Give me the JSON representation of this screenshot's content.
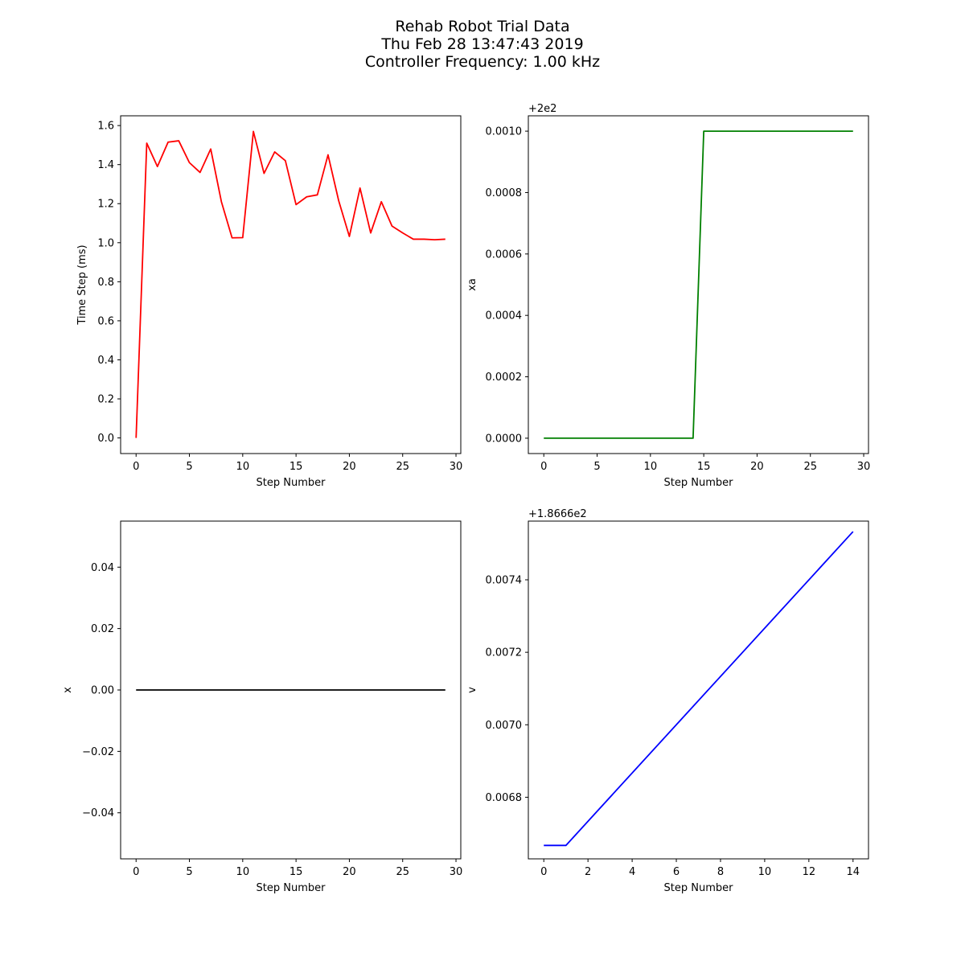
{
  "figure": {
    "title_lines": [
      "Rehab Robot Trial Data",
      "Thu Feb 28 13:47:43 2019",
      "Controller Frequency: 1.00 kHz"
    ]
  },
  "chart_data": [
    {
      "type": "line",
      "xlabel": "Step Number",
      "ylabel": "Time Step (ms)",
      "offset_text": "",
      "color": "#ff0000",
      "xlim": [
        -1.45,
        30.45
      ],
      "ylim": [
        -0.08,
        1.65
      ],
      "xticks": [
        0,
        5,
        10,
        15,
        20,
        25,
        30
      ],
      "xtick_labels": [
        "0",
        "5",
        "10",
        "15",
        "20",
        "25",
        "30"
      ],
      "yticks": [
        0.0,
        0.2,
        0.4,
        0.6,
        0.8,
        1.0,
        1.2,
        1.4,
        1.6
      ],
      "ytick_labels": [
        "0.0",
        "0.2",
        "0.4",
        "0.6",
        "0.8",
        "1.0",
        "1.2",
        "1.4",
        "1.6"
      ],
      "x": [
        0,
        1,
        2,
        3,
        4,
        5,
        6,
        7,
        8,
        9,
        10,
        11,
        12,
        13,
        14,
        15,
        16,
        17,
        18,
        19,
        20,
        21,
        22,
        23,
        24,
        25,
        26,
        27,
        28,
        29
      ],
      "y": [
        0.0,
        1.51,
        1.39,
        1.515,
        1.522,
        1.41,
        1.36,
        1.48,
        1.21,
        1.025,
        1.026,
        1.57,
        1.355,
        1.465,
        1.42,
        1.195,
        1.235,
        1.245,
        1.45,
        1.215,
        1.032,
        1.28,
        1.05,
        1.21,
        1.085,
        1.05,
        1.018,
        1.018,
        1.015,
        1.018
      ]
    },
    {
      "type": "line",
      "xlabel": "Step Number",
      "ylabel": "xa",
      "offset_text": "+2e2",
      "color": "#008000",
      "xlim": [
        -1.45,
        30.45
      ],
      "ylim": [
        -5e-05,
        0.00105
      ],
      "xticks": [
        0,
        5,
        10,
        15,
        20,
        25,
        30
      ],
      "xtick_labels": [
        "0",
        "5",
        "10",
        "15",
        "20",
        "25",
        "30"
      ],
      "yticks": [
        0.0,
        0.0002,
        0.0004,
        0.0006,
        0.0008,
        0.001
      ],
      "ytick_labels": [
        "0.0000",
        "0.0002",
        "0.0004",
        "0.0006",
        "0.0008",
        "0.0010"
      ],
      "x": [
        0,
        1,
        2,
        3,
        4,
        5,
        6,
        7,
        8,
        9,
        10,
        11,
        12,
        13,
        14,
        15,
        16,
        17,
        18,
        19,
        20,
        21,
        22,
        23,
        24,
        25,
        26,
        27,
        28,
        29
      ],
      "y": [
        0,
        0,
        0,
        0,
        0,
        0,
        0,
        0,
        0,
        0,
        0,
        0,
        0,
        0,
        0,
        0.001,
        0.001,
        0.001,
        0.001,
        0.001,
        0.001,
        0.001,
        0.001,
        0.001,
        0.001,
        0.001,
        0.001,
        0.001,
        0.001,
        0.001
      ]
    },
    {
      "type": "line",
      "xlabel": "Step Number",
      "ylabel": "x",
      "offset_text": "",
      "color": "#000000",
      "xlim": [
        -1.45,
        30.45
      ],
      "ylim": [
        -0.055,
        0.055
      ],
      "xticks": [
        0,
        5,
        10,
        15,
        20,
        25,
        30
      ],
      "xtick_labels": [
        "0",
        "5",
        "10",
        "15",
        "20",
        "25",
        "30"
      ],
      "yticks": [
        -0.04,
        -0.02,
        0.0,
        0.02,
        0.04
      ],
      "ytick_labels": [
        "−0.04",
        "−0.02",
        "0.00",
        "0.02",
        "0.04"
      ],
      "x": [
        0,
        1,
        2,
        3,
        4,
        5,
        6,
        7,
        8,
        9,
        10,
        11,
        12,
        13,
        14,
        15,
        16,
        17,
        18,
        19,
        20,
        21,
        22,
        23,
        24,
        25,
        26,
        27,
        28,
        29
      ],
      "y": [
        0,
        0,
        0,
        0,
        0,
        0,
        0,
        0,
        0,
        0,
        0,
        0,
        0,
        0,
        0,
        0,
        0,
        0,
        0,
        0,
        0,
        0,
        0,
        0,
        0,
        0,
        0,
        0,
        0,
        0
      ]
    },
    {
      "type": "line",
      "xlabel": "Step Number",
      "ylabel": "v",
      "offset_text": "+1.8666e2",
      "color": "#0000ff",
      "xlim": [
        -0.7,
        14.7
      ],
      "ylim": [
        0.00663,
        0.007562
      ],
      "xticks": [
        0,
        2,
        4,
        6,
        8,
        10,
        12,
        14
      ],
      "xtick_labels": [
        "0",
        "2",
        "4",
        "6",
        "8",
        "10",
        "12",
        "14"
      ],
      "yticks": [
        0.0068,
        0.007,
        0.0072,
        0.0074
      ],
      "ytick_labels": [
        "0.0068",
        "0.0070",
        "0.0072",
        "0.0074"
      ],
      "x": [
        0,
        1,
        14
      ],
      "y": [
        0.006667,
        0.006667,
        0.007533
      ]
    }
  ]
}
